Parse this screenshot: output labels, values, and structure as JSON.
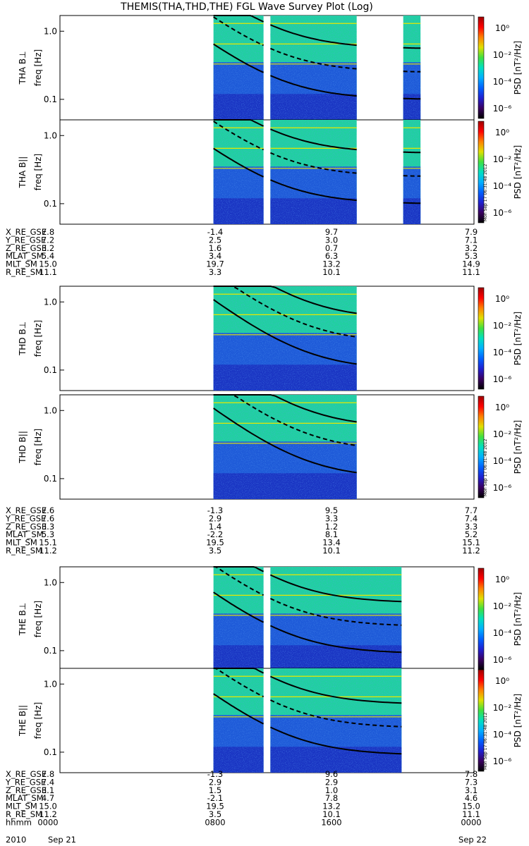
{
  "title": "THEMIS(THA,THD,THE) FGL Wave Survey Plot (Log)",
  "timestamp": "Mon Sep 17 06:31:48 2012",
  "colorbar": {
    "label": "PSD [nT²/Hz]",
    "tick_labels": [
      "10⁰",
      "10⁻²",
      "10⁻⁴",
      "10⁻⁶"
    ],
    "colors": [
      "#000000",
      "#3a0060",
      "#2020d0",
      "#0060ff",
      "#00b0ff",
      "#00e0c0",
      "#40e040",
      "#e0e000",
      "#ff8000",
      "#ff0000",
      "#a00000"
    ]
  },
  "freq_axis_label": "freq [Hz]",
  "freq_ticks": [
    "1.0",
    "0.1"
  ],
  "panels": [
    {
      "probe": "THA",
      "component": "THA B⊥"
    },
    {
      "probe": "THA",
      "component": "THA B||"
    },
    {
      "probe": "THD",
      "component": "THD B⊥"
    },
    {
      "probe": "THD",
      "component": "THD B||"
    },
    {
      "probe": "THE",
      "component": "THE B⊥"
    },
    {
      "probe": "THE",
      "component": "THE B||"
    }
  ],
  "ephemeris": [
    {
      "probe": "THA",
      "rows": [
        [
          "X_RE_GSE",
          "7.8",
          "-1.4",
          "9.7",
          "7.9"
        ],
        [
          "Y_RE_GSE",
          "7.2",
          "2.5",
          "3.0",
          "7.1"
        ],
        [
          "Z_RE_GSE",
          "3.2",
          "1.6",
          "0.7",
          "3.2"
        ],
        [
          "MLAT_SM",
          "5.4",
          "3.4",
          "6.3",
          "5.3"
        ],
        [
          "MLT_SM",
          "15.0",
          "19.7",
          "13.2",
          "14.9"
        ],
        [
          "R_RE_SM",
          "11.1",
          "3.3",
          "10.1",
          "11.1"
        ]
      ]
    },
    {
      "probe": "THD",
      "rows": [
        [
          "X_RE_GSE",
          "7.6",
          "-1.3",
          "9.5",
          "7.7"
        ],
        [
          "Y_RE_GSE",
          "7.6",
          "2.9",
          "3.3",
          "7.4"
        ],
        [
          "Z_RE_GSE",
          "3.3",
          "1.4",
          "1.2",
          "3.3"
        ],
        [
          "MLAT_SM",
          "5.3",
          "-2.2",
          "8.1",
          "5.2"
        ],
        [
          "MLT_SM",
          "15.1",
          "19.5",
          "13.4",
          "15.1"
        ],
        [
          "R_RE_SM",
          "11.2",
          "3.5",
          "10.1",
          "11.2"
        ]
      ]
    },
    {
      "probe": "THE",
      "rows": [
        [
          "X_RE_GSE",
          "7.8",
          "-1.3",
          "9.6",
          "7.8"
        ],
        [
          "Y_RE_GSE",
          "7.4",
          "2.9",
          "2.9",
          "7.3"
        ],
        [
          "Z_RE_GSE",
          "3.1",
          "1.5",
          "1.0",
          "3.1"
        ],
        [
          "MLAT_SM",
          "4.7",
          "-2.1",
          "7.8",
          "4.6"
        ],
        [
          "MLT_SM",
          "15.0",
          "19.5",
          "13.2",
          "15.0"
        ],
        [
          "R_RE_SM",
          "11.2",
          "3.5",
          "10.1",
          "11.1"
        ],
        [
          "hhmm",
          "0000",
          "0800",
          "1600",
          "0000"
        ]
      ]
    }
  ],
  "date_labels": {
    "year": "2010",
    "start": "Sep 21",
    "end": "Sep 22"
  },
  "chart_data": {
    "type": "heatmap",
    "title": "THEMIS(THA,THD,THE) FGL Wave Survey Plot (Log)",
    "x_axis": {
      "label": "hhmm",
      "ticks": [
        "0000",
        "0800",
        "1600",
        "0000"
      ],
      "range_hours": [
        0,
        24
      ]
    },
    "y_axis": {
      "label": "freq [Hz]",
      "scale": "log",
      "range": [
        0.05,
        1.7
      ],
      "ticks": [
        1.0,
        0.1
      ]
    },
    "z_axis": {
      "label": "PSD [nT²/Hz]",
      "scale": "log",
      "range": [
        1e-07,
        10
      ]
    },
    "series": [
      {
        "name": "THA B⊥",
        "data_intervals_hours": [
          [
            8.9,
            11.8
          ],
          [
            12.2,
            17.2
          ],
          [
            19.9,
            20.9
          ]
        ],
        "fce_line_hz": [
          0.9,
          0.55
        ]
      },
      {
        "name": "THA B||",
        "data_intervals_hours": [
          [
            8.9,
            11.8
          ],
          [
            12.2,
            17.2
          ],
          [
            19.9,
            20.9
          ]
        ],
        "fce_line_hz": [
          0.9,
          0.55
        ]
      },
      {
        "name": "THD B⊥",
        "data_intervals_hours": [
          [
            8.9,
            17.2
          ]
        ],
        "fce_line_hz": [
          1.5,
          0.55
        ]
      },
      {
        "name": "THD B||",
        "data_intervals_hours": [
          [
            8.9,
            17.2
          ]
        ],
        "fce_line_hz": [
          1.5,
          0.55
        ]
      },
      {
        "name": "THE B⊥",
        "data_intervals_hours": [
          [
            8.9,
            11.8
          ],
          [
            12.2,
            19.8
          ]
        ],
        "fce_line_hz": [
          1.0,
          0.5
        ]
      },
      {
        "name": "THE B||",
        "data_intervals_hours": [
          [
            8.9,
            11.8
          ],
          [
            12.2,
            19.8
          ]
        ],
        "fce_line_hz": [
          1.0,
          0.5
        ]
      }
    ]
  }
}
